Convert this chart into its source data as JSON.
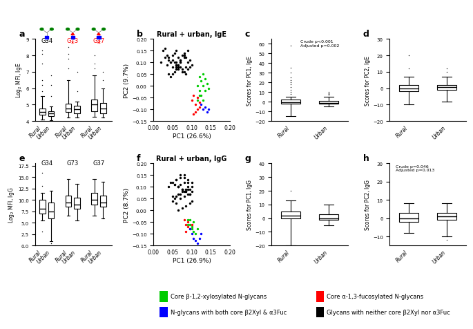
{
  "box_a": {
    "G34_Rural": {
      "q1": 4.4,
      "median": 4.55,
      "q3": 4.75,
      "whislo": 4.1,
      "whishi": 5.5,
      "fliers": [
        5.8,
        6.2,
        6.5,
        7.5,
        8.1,
        8.3
      ]
    },
    "G34_Urban": {
      "q1": 4.3,
      "median": 4.45,
      "q3": 4.6,
      "whislo": 4.05,
      "whishi": 4.9,
      "fliers": [
        5.5,
        6.2,
        6.8
      ]
    },
    "G73_Rural": {
      "q1": 4.55,
      "median": 4.75,
      "q3": 5.05,
      "whislo": 4.2,
      "whishi": 6.5,
      "fliers": [
        7.2,
        7.8,
        8.1,
        8.5
      ]
    },
    "G73_Urban": {
      "q1": 4.45,
      "median": 4.7,
      "q3": 4.95,
      "whislo": 4.2,
      "whishi": 5.2,
      "fliers": [
        5.8,
        7.0
      ]
    },
    "G37_Rural": {
      "q1": 4.6,
      "median": 5.0,
      "q3": 5.3,
      "whislo": 4.25,
      "whishi": 6.8,
      "fliers": [
        7.2,
        7.5,
        8.0
      ]
    },
    "G37_Urban": {
      "q1": 4.45,
      "median": 4.75,
      "q3": 5.1,
      "whislo": 4.2,
      "whishi": 6.0,
      "fliers": [
        6.5,
        7.0
      ]
    }
  },
  "box_e": {
    "G34_Rural": {
      "q1": 7.0,
      "median": 8.0,
      "q3": 10.0,
      "whislo": 5.5,
      "whishi": 11.5,
      "fliers": [
        3.0,
        13.0,
        16.0
      ]
    },
    "G34_Urban": {
      "q1": 6.0,
      "median": 7.5,
      "q3": 9.5,
      "whislo": 1.0,
      "whishi": 12.0,
      "fliers": [
        0.5
      ]
    },
    "G73_Rural": {
      "q1": 8.5,
      "median": 9.5,
      "q3": 11.0,
      "whislo": 6.5,
      "whishi": 14.5,
      "fliers": []
    },
    "G73_Urban": {
      "q1": 8.0,
      "median": 9.0,
      "q3": 10.5,
      "whislo": 5.5,
      "whishi": 13.5,
      "fliers": []
    },
    "G37_Rural": {
      "q1": 9.0,
      "median": 10.0,
      "q3": 11.5,
      "whislo": 6.5,
      "whishi": 14.5,
      "fliers": []
    },
    "G37_Urban": {
      "q1": 8.5,
      "median": 9.5,
      "q3": 11.0,
      "whislo": 6.0,
      "whishi": 14.0,
      "fliers": []
    }
  },
  "scatter_b": {
    "black_x": [
      0.02,
      0.03,
      0.04,
      0.05,
      0.06,
      0.055,
      0.065,
      0.045,
      0.035,
      0.05,
      0.06,
      0.07,
      0.075,
      0.08,
      0.09,
      0.08,
      0.07,
      0.06,
      0.065,
      0.075,
      0.085,
      0.09,
      0.095,
      0.1,
      0.04,
      0.045,
      0.055,
      0.05,
      0.06,
      0.065,
      0.07,
      0.08,
      0.085,
      0.03,
      0.025,
      0.035,
      0.04,
      0.055,
      0.06,
      0.07,
      0.075,
      0.08,
      0.085,
      0.09,
      0.095,
      0.05,
      0.045,
      0.06,
      0.065,
      0.07
    ],
    "black_y": [
      0.1,
      0.12,
      0.11,
      0.13,
      0.15,
      0.14,
      0.12,
      0.1,
      0.09,
      0.08,
      0.1,
      0.11,
      0.13,
      0.14,
      0.15,
      0.12,
      0.1,
      0.08,
      0.07,
      0.06,
      0.08,
      0.1,
      0.11,
      0.09,
      0.05,
      0.04,
      0.06,
      0.05,
      0.07,
      0.09,
      0.11,
      0.13,
      0.12,
      0.16,
      0.15,
      0.13,
      0.12,
      0.1,
      0.09,
      0.08,
      0.07,
      0.06,
      0.05,
      0.07,
      0.08,
      0.11,
      0.1,
      0.09,
      0.08,
      0.1
    ],
    "green_x": [
      0.12,
      0.125,
      0.13,
      0.135,
      0.12,
      0.115,
      0.13,
      0.125,
      0.12,
      0.115,
      0.13,
      0.135,
      0.14,
      0.145
    ],
    "green_y": [
      0.04,
      0.02,
      0.0,
      -0.02,
      -0.04,
      -0.06,
      -0.06,
      -0.04,
      -0.02,
      0.0,
      0.05,
      0.03,
      0.01,
      -0.01
    ],
    "red_x": [
      0.105,
      0.11,
      0.115,
      0.12,
      0.11,
      0.105,
      0.1,
      0.115,
      0.12
    ],
    "red_y": [
      -0.04,
      -0.08,
      -0.1,
      -0.09,
      -0.11,
      -0.12,
      -0.06,
      -0.05,
      -0.07
    ],
    "blue_x": [
      0.125,
      0.13,
      0.135,
      0.14,
      0.145
    ],
    "blue_y": [
      -0.08,
      -0.1,
      -0.09,
      -0.11,
      -0.1
    ]
  },
  "scatter_f": {
    "black_x": [
      0.04,
      0.05,
      0.06,
      0.07,
      0.08,
      0.09,
      0.055,
      0.065,
      0.075,
      0.085,
      0.095,
      0.06,
      0.07,
      0.08,
      0.09,
      0.1,
      0.065,
      0.075,
      0.085,
      0.095,
      0.05,
      0.055,
      0.065,
      0.075,
      0.085,
      0.07,
      0.08,
      0.09,
      0.095,
      0.1,
      0.05,
      0.06,
      0.07,
      0.08,
      0.09,
      0.045,
      0.055,
      0.065,
      0.075,
      0.085,
      0.06,
      0.07,
      0.08,
      0.09,
      0.1,
      0.065,
      0.075,
      0.085,
      0.095,
      0.1
    ],
    "black_y": [
      0.1,
      0.12,
      0.13,
      0.15,
      0.14,
      0.12,
      0.11,
      0.1,
      0.09,
      0.08,
      0.07,
      0.13,
      0.14,
      0.15,
      0.13,
      0.12,
      0.1,
      0.09,
      0.08,
      0.07,
      0.06,
      0.05,
      0.07,
      0.08,
      0.09,
      0.11,
      0.12,
      0.1,
      0.09,
      0.08,
      0.04,
      0.03,
      0.05,
      0.06,
      0.07,
      0.12,
      0.11,
      0.1,
      0.09,
      0.08,
      0.06,
      0.07,
      0.08,
      0.09,
      0.1,
      0.0,
      0.01,
      0.02,
      0.03,
      0.04
    ],
    "green_x": [
      0.09,
      0.095,
      0.1,
      0.105,
      0.11,
      0.115,
      0.09,
      0.095,
      0.1,
      0.105
    ],
    "green_y": [
      -0.04,
      -0.06,
      -0.08,
      -0.09,
      -0.1,
      -0.08,
      -0.06,
      -0.04,
      -0.07,
      -0.05
    ],
    "red_x": [
      0.08,
      0.085,
      0.09,
      0.095,
      0.1,
      0.085,
      0.09
    ],
    "red_y": [
      -0.04,
      -0.06,
      -0.07,
      -0.08,
      -0.06,
      -0.09,
      -0.05
    ],
    "blue_x": [
      0.095,
      0.1,
      0.105,
      0.11,
      0.115,
      0.12,
      0.125
    ],
    "blue_y": [
      -0.08,
      -0.1,
      -0.12,
      -0.13,
      -0.14,
      -0.12,
      -0.1
    ]
  },
  "box_c": {
    "Rural": {
      "q1": -2,
      "median": -0.5,
      "q3": 2,
      "whislo": -15,
      "whishi": 5,
      "fliers": [
        8,
        10,
        12,
        15,
        18,
        20,
        22,
        25,
        30,
        35,
        58
      ]
    },
    "Urban": {
      "q1": -2,
      "median": -1.5,
      "q3": 0.5,
      "whislo": -5,
      "whishi": 5,
      "fliers": [
        7,
        8,
        9,
        10
      ]
    }
  },
  "box_d": {
    "Rural": {
      "q1": -2,
      "median": 0,
      "q3": 2,
      "whislo": -10,
      "whishi": 7,
      "fliers": [
        12,
        20
      ]
    },
    "Urban": {
      "q1": -1,
      "median": 0.5,
      "q3": 2,
      "whislo": -8,
      "whishi": 7,
      "fliers": [
        10,
        12
      ]
    }
  },
  "box_g": {
    "Rural": {
      "q1": 0,
      "median": 2,
      "q3": 5,
      "whislo": -20,
      "whishi": 13,
      "fliers": [
        20
      ]
    },
    "Urban": {
      "q1": -1,
      "median": 0,
      "q3": 3,
      "whislo": -5,
      "whishi": 10,
      "fliers": []
    }
  },
  "box_h": {
    "Rural": {
      "q1": -2,
      "median": 0,
      "q3": 3,
      "whislo": -8,
      "whishi": 8,
      "fliers": []
    },
    "Urban": {
      "q1": -1,
      "median": 1,
      "q3": 3,
      "whislo": -10,
      "whishi": 8,
      "fliers": [
        -12
      ]
    }
  },
  "legend_items": [
    {
      "label": "Core β-1,2-xylosylated N-glycans",
      "color": "#00CC00"
    },
    {
      "label": "Core α-1,3-fucosylated N-glycans",
      "color": "#FF0000"
    },
    {
      "label": "N-glycans with both core β2Xyl & α3Fuc",
      "color": "#0000FF"
    },
    {
      "label": "Glycans with neither core β2Xyl nor α3Fuc",
      "color": "#000000"
    }
  ],
  "annotation_c": "Crude p<0.001\nAdjusted p=0.002",
  "annotation_h": "Crude p=0.046\nAdjusted p=0.013",
  "pc1_ige_label": "PC1 (26.6%)",
  "pc2_ige_label": "PC2 (9.7%)",
  "pc1_igg_label": "PC1 (26.9%)",
  "pc2_igg_label": "PC2 (8.7%)"
}
